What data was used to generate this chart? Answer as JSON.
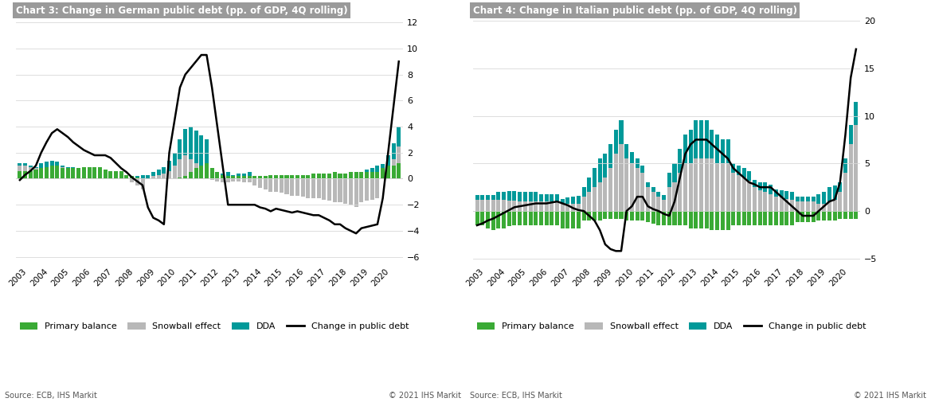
{
  "chart3_title": "Chart 3: Change in German public debt (pp. of GDP, 4Q rolling)",
  "chart4_title": "Chart 4: Change in Italian public debt (pp. of GDP, 4Q rolling)",
  "source_text": "Source: ECB, IHS Markit",
  "copyright_text": "© 2021 IHS Markit",
  "colors": {
    "primary_balance": "#3aaa35",
    "snowball": "#b8b8b8",
    "dda": "#009999",
    "line": "#000000",
    "title_bg": "#9a9a9a",
    "grid": "#d8d8d8",
    "background": "#ffffff"
  },
  "german_yticks": [
    -6,
    -4,
    -2,
    0,
    2,
    4,
    6,
    8,
    10,
    12
  ],
  "italian_yticks": [
    -5,
    0,
    5,
    10,
    15,
    20
  ],
  "german_ylim": [
    -6.5,
    12.5
  ],
  "italian_ylim": [
    -5.5,
    20.5
  ],
  "legend_labels": [
    "Primary balance",
    "Snowball effect",
    "DDA",
    "Change in public debt"
  ],
  "german_pb": [
    0.6,
    0.6,
    0.6,
    0.7,
    0.8,
    0.9,
    1.0,
    1.0,
    0.8,
    0.8,
    0.8,
    0.8,
    0.9,
    0.9,
    0.9,
    0.9,
    0.7,
    0.6,
    0.6,
    0.6,
    0.3,
    0.2,
    0.1,
    0.0,
    0.0,
    0.0,
    0.0,
    0.0,
    0.0,
    0.0,
    0.1,
    0.2,
    0.5,
    0.8,
    1.0,
    1.2,
    0.8,
    0.5,
    0.3,
    0.2,
    0.2,
    0.2,
    0.2,
    0.2,
    0.2,
    0.2,
    0.2,
    0.3,
    0.3,
    0.3,
    0.3,
    0.3,
    0.3,
    0.3,
    0.3,
    0.4,
    0.4,
    0.4,
    0.4,
    0.5,
    0.4,
    0.4,
    0.5,
    0.5,
    0.5,
    0.5,
    0.5,
    0.5,
    0.8,
    1.0,
    1.0,
    1.2
  ],
  "german_snow": [
    1.0,
    1.0,
    0.9,
    0.8,
    0.7,
    0.8,
    1.0,
    1.0,
    0.9,
    0.8,
    0.8,
    0.8,
    0.8,
    0.7,
    0.7,
    0.7,
    0.5,
    0.4,
    0.3,
    0.2,
    0.0,
    -0.3,
    -0.5,
    -0.8,
    0.0,
    0.2,
    0.3,
    0.4,
    0.6,
    1.0,
    1.5,
    1.8,
    1.5,
    1.2,
    0.8,
    0.5,
    -0.1,
    -0.2,
    -0.3,
    -0.3,
    -0.2,
    -0.2,
    -0.3,
    -0.3,
    -0.5,
    -0.7,
    -0.8,
    -1.0,
    -1.0,
    -1.1,
    -1.2,
    -1.3,
    -1.3,
    -1.4,
    -1.5,
    -1.5,
    -1.5,
    -1.6,
    -1.7,
    -1.8,
    -1.8,
    -1.9,
    -2.0,
    -2.2,
    -1.8,
    -1.7,
    -1.6,
    -1.5,
    0.3,
    0.8,
    1.5,
    2.5
  ],
  "german_dda": [
    0.2,
    0.2,
    0.1,
    0.1,
    0.5,
    0.5,
    0.4,
    0.3,
    0.1,
    0.1,
    0.1,
    0.0,
    0.1,
    0.0,
    0.0,
    0.0,
    0.1,
    0.1,
    0.1,
    0.1,
    0.2,
    0.2,
    0.2,
    0.3,
    0.3,
    0.3,
    0.4,
    0.5,
    0.8,
    1.0,
    1.5,
    2.0,
    2.5,
    2.5,
    2.5,
    2.5,
    0.4,
    0.4,
    0.4,
    0.5,
    0.3,
    0.4,
    0.4,
    0.5,
    0.2,
    0.2,
    0.2,
    0.3,
    0.2,
    0.2,
    0.3,
    0.3,
    0.2,
    0.3,
    0.3,
    0.4,
    0.1,
    0.2,
    0.2,
    0.2,
    0.1,
    0.2,
    0.2,
    0.2,
    0.5,
    0.7,
    0.8,
    1.0,
    0.8,
    1.0,
    1.2,
    1.5
  ],
  "german_line": [
    -0.1,
    0.3,
    0.6,
    1.0,
    2.0,
    2.8,
    3.5,
    3.8,
    3.5,
    3.2,
    2.8,
    2.5,
    2.2,
    2.0,
    1.8,
    1.8,
    1.8,
    1.6,
    1.2,
    0.8,
    0.5,
    0.1,
    -0.2,
    -0.5,
    -2.2,
    -3.0,
    -3.2,
    -3.5,
    2.0,
    4.5,
    7.0,
    8.0,
    8.5,
    9.0,
    9.5,
    9.5,
    7.0,
    4.0,
    1.0,
    -2.0,
    -2.0,
    -2.0,
    -2.0,
    -2.0,
    -2.0,
    -2.2,
    -2.3,
    -2.5,
    -2.3,
    -2.4,
    -2.5,
    -2.6,
    -2.5,
    -2.6,
    -2.7,
    -2.8,
    -2.8,
    -3.0,
    -3.2,
    -3.5,
    -3.5,
    -3.8,
    -4.0,
    -4.2,
    -3.8,
    -3.7,
    -3.6,
    -3.5,
    -1.5,
    2.0,
    5.5,
    9.0
  ],
  "italian_pb": [
    -1.5,
    -1.5,
    -1.8,
    -2.0,
    -1.8,
    -1.8,
    -1.6,
    -1.5,
    -1.5,
    -1.5,
    -1.5,
    -1.5,
    -1.5,
    -1.5,
    -1.5,
    -1.5,
    -1.8,
    -1.8,
    -1.8,
    -1.8,
    -1.0,
    -1.0,
    -1.0,
    -1.0,
    -0.8,
    -0.8,
    -0.8,
    -0.8,
    -1.0,
    -1.0,
    -1.0,
    -1.0,
    -1.2,
    -1.3,
    -1.5,
    -1.5,
    -1.5,
    -1.5,
    -1.5,
    -1.5,
    -1.8,
    -1.8,
    -1.8,
    -1.8,
    -2.0,
    -2.0,
    -2.0,
    -2.0,
    -1.5,
    -1.5,
    -1.5,
    -1.5,
    -1.5,
    -1.5,
    -1.5,
    -1.5,
    -1.5,
    -1.5,
    -1.5,
    -1.5,
    -1.2,
    -1.2,
    -1.2,
    -1.2,
    -1.0,
    -1.0,
    -1.0,
    -1.0,
    -0.8,
    -0.8,
    -0.8,
    -0.8
  ],
  "italian_snow": [
    1.2,
    1.2,
    1.2,
    1.2,
    1.2,
    1.2,
    1.1,
    1.1,
    1.0,
    1.0,
    1.0,
    1.0,
    1.0,
    1.0,
    1.0,
    1.0,
    0.8,
    0.8,
    0.8,
    0.8,
    1.5,
    2.0,
    2.5,
    3.0,
    3.5,
    4.5,
    6.0,
    7.0,
    5.5,
    5.0,
    4.5,
    4.0,
    2.5,
    2.0,
    1.5,
    1.2,
    2.5,
    3.0,
    4.0,
    5.0,
    5.0,
    5.5,
    5.5,
    5.5,
    5.5,
    5.0,
    5.0,
    5.0,
    4.0,
    3.8,
    3.5,
    3.2,
    2.5,
    2.2,
    2.0,
    1.8,
    1.5,
    1.4,
    1.3,
    1.2,
    1.0,
    1.0,
    1.0,
    1.0,
    0.8,
    0.8,
    1.0,
    1.2,
    2.0,
    4.0,
    7.0,
    9.0
  ],
  "italian_dda": [
    0.5,
    0.5,
    0.5,
    0.5,
    0.8,
    0.8,
    1.0,
    1.0,
    1.0,
    1.0,
    1.0,
    1.0,
    0.8,
    0.8,
    0.8,
    0.8,
    0.5,
    0.6,
    0.7,
    0.8,
    1.0,
    1.5,
    2.0,
    2.5,
    2.5,
    2.5,
    2.5,
    2.5,
    1.5,
    1.2,
    1.0,
    0.8,
    0.5,
    0.5,
    0.5,
    0.5,
    1.5,
    2.0,
    2.5,
    3.0,
    3.5,
    4.0,
    4.0,
    4.0,
    3.0,
    3.0,
    2.5,
    2.5,
    1.0,
    1.0,
    1.0,
    1.0,
    0.8,
    0.8,
    1.0,
    1.0,
    0.8,
    0.8,
    0.8,
    0.8,
    0.5,
    0.5,
    0.5,
    0.5,
    1.0,
    1.2,
    1.5,
    1.5,
    1.0,
    1.5,
    2.0,
    2.5
  ],
  "italian_line": [
    -1.5,
    -1.3,
    -1.0,
    -0.8,
    -0.5,
    -0.2,
    0.1,
    0.4,
    0.5,
    0.6,
    0.7,
    0.8,
    0.8,
    0.8,
    0.9,
    1.0,
    0.8,
    0.6,
    0.3,
    0.1,
    0.0,
    -0.5,
    -1.0,
    -2.0,
    -3.5,
    -4.0,
    -4.2,
    -4.2,
    0.0,
    0.5,
    1.5,
    1.5,
    0.5,
    0.2,
    0.0,
    -0.3,
    -0.5,
    1.0,
    3.5,
    6.0,
    7.0,
    7.5,
    7.5,
    7.5,
    7.0,
    6.5,
    6.0,
    5.5,
    4.5,
    4.0,
    3.5,
    3.0,
    2.8,
    2.5,
    2.5,
    2.5,
    2.0,
    1.5,
    1.0,
    0.5,
    0.0,
    -0.5,
    -0.5,
    -0.5,
    0.0,
    0.5,
    1.0,
    1.2,
    3.0,
    8.0,
    14.0,
    17.0
  ]
}
